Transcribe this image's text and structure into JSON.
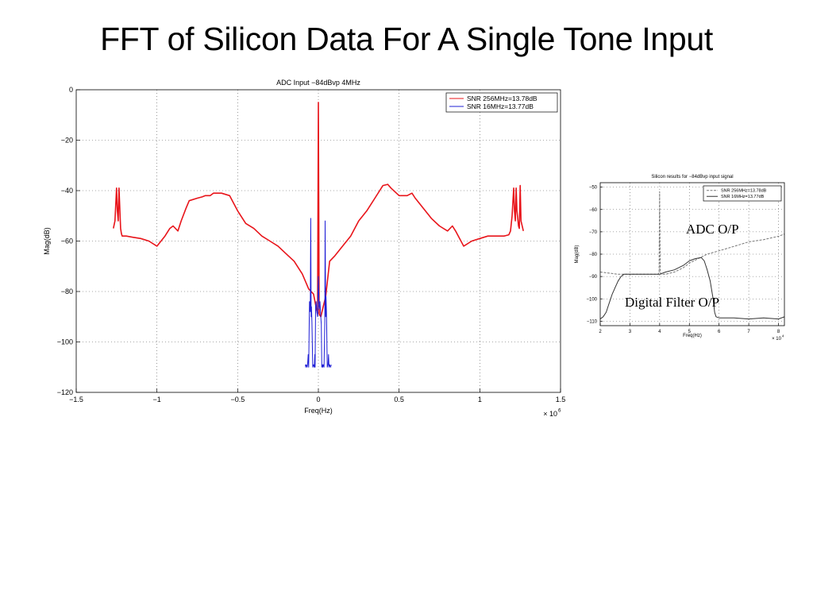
{
  "slide": {
    "title": "FFT of Silicon Data For A Single Tone Input"
  },
  "annotations": {
    "adc_op": "ADC O/P",
    "digital_filter_op": "Digital Filter O/P"
  },
  "chart_data": [
    {
      "type": "line",
      "title": "ADC Input −84dBvp 4MHz",
      "xlabel": "Freq(Hz)",
      "ylabel": "Mag(dB)",
      "x_multiplier": "× 10",
      "x_exponent": "6",
      "xlim": [
        -1.5,
        1.5
      ],
      "ylim": [
        -120,
        0
      ],
      "xticks": [
        {
          "v": -1.5,
          "label": "−1.5"
        },
        {
          "v": -1,
          "label": "−1"
        },
        {
          "v": -0.5,
          "label": "−0.5"
        },
        {
          "v": 0,
          "label": "0"
        },
        {
          "v": 0.5,
          "label": "0.5"
        },
        {
          "v": 1,
          "label": "1"
        },
        {
          "v": 1.5,
          "label": "1.5"
        }
      ],
      "yticks": [
        {
          "v": 0,
          "label": "0"
        },
        {
          "v": -20,
          "label": "−20"
        },
        {
          "v": -40,
          "label": "−40"
        },
        {
          "v": -60,
          "label": "−60"
        },
        {
          "v": -80,
          "label": "−80"
        },
        {
          "v": -100,
          "label": "−100"
        },
        {
          "v": -120,
          "label": "−120"
        }
      ],
      "grid": true,
      "legend_position": "top-right",
      "series": [
        {
          "name": "SNR 256MHz=13.78dB",
          "color": "#e8141a",
          "x": [
            -1.27,
            -1.26,
            -1.25,
            -1.245,
            -1.24,
            -1.235,
            -1.225,
            -1.22,
            -1.215,
            -1.2,
            -1.19,
            -1.15,
            -1.1,
            -1.05,
            -1.0,
            -0.95,
            -0.92,
            -0.9,
            -0.87,
            -0.85,
            -0.82,
            -0.8,
            -0.75,
            -0.72,
            -0.7,
            -0.67,
            -0.65,
            -0.6,
            -0.55,
            -0.5,
            -0.45,
            -0.4,
            -0.35,
            -0.3,
            -0.25,
            -0.2,
            -0.15,
            -0.1,
            -0.06,
            -0.03,
            -0.015,
            -0.005,
            0.0,
            0.005,
            0.015,
            0.03,
            0.045,
            0.07,
            0.1,
            0.15,
            0.2,
            0.25,
            0.3,
            0.35,
            0.4,
            0.43,
            0.45,
            0.5,
            0.55,
            0.58,
            0.6,
            0.65,
            0.7,
            0.75,
            0.8,
            0.83,
            0.85,
            0.9,
            0.95,
            1.0,
            1.05,
            1.1,
            1.15,
            1.18,
            1.19,
            1.2,
            1.21,
            1.215,
            1.22,
            1.225,
            1.23,
            1.24,
            1.245,
            1.25,
            1.255,
            1.27
          ],
          "y": [
            -55,
            -52,
            -39,
            -48,
            -52,
            -39,
            -55,
            -57,
            -58,
            -58,
            -58,
            -58.5,
            -59,
            -60,
            -62,
            -58,
            -55,
            -54,
            -56,
            -52,
            -47,
            -44,
            -43,
            -42.5,
            -42,
            -42,
            -41,
            -41,
            -42,
            -48,
            -53,
            -55,
            -58,
            -60,
            -62,
            -65,
            -68,
            -73,
            -79,
            -81,
            -86,
            -89,
            -5,
            -89,
            -90,
            -86,
            -82,
            -68,
            -66,
            -62,
            -58,
            -52,
            -48,
            -43,
            -38,
            -37.5,
            -39,
            -42,
            -42,
            -41,
            -43,
            -47,
            -51,
            -54,
            -56,
            -54,
            -56,
            -62,
            -60,
            -59,
            -58,
            -58,
            -58,
            -57.5,
            -56,
            -50,
            -39,
            -48,
            -52,
            -39,
            -48,
            -54,
            -55,
            -38,
            -52,
            -56
          ]
        },
        {
          "name": "SNR 16MHz=13.77dB",
          "color": "#1f1fd6",
          "x": [
            -0.08,
            -0.078,
            -0.075,
            -0.07,
            -0.067,
            -0.063,
            -0.06,
            -0.055,
            -0.05,
            -0.047,
            -0.045,
            -0.043,
            -0.04,
            -0.035,
            -0.03,
            -0.025,
            -0.022,
            -0.02,
            -0.017,
            -0.014,
            -0.01,
            -0.005,
            0.0,
            0.005,
            0.01,
            0.014,
            0.018,
            0.021,
            0.024,
            0.027,
            0.03,
            0.035,
            0.04,
            0.042,
            0.045,
            0.047,
            0.05,
            0.055,
            0.06,
            0.063,
            0.066,
            0.07,
            0.075,
            0.08
          ],
          "y": [
            -109,
            -110,
            -109,
            -110,
            -109,
            -105,
            -110,
            -84,
            -88,
            -51,
            -90,
            -86,
            -92,
            -110,
            -109,
            -110,
            -105,
            -110,
            -86,
            -84,
            -88,
            -90,
            -74,
            -87,
            -84,
            -89,
            -93,
            -110,
            -109,
            -110,
            -109,
            -110,
            -92,
            -52,
            -90,
            -82,
            -88,
            -110,
            -109,
            -105,
            -110,
            -109,
            -110,
            -109
          ]
        }
      ]
    },
    {
      "type": "line",
      "title": "Silicon results for −84dBvp input signal",
      "xlabel": "Freq(Hz)",
      "ylabel": "Mag(dB)",
      "x_multiplier": "× 10",
      "x_exponent": "4",
      "xlim": [
        2,
        8.2
      ],
      "ylim": [
        -112,
        -48
      ],
      "xticks": [
        {
          "v": 2,
          "label": "2"
        },
        {
          "v": 3,
          "label": "3"
        },
        {
          "v": 4,
          "label": "4"
        },
        {
          "v": 5,
          "label": "5"
        },
        {
          "v": 6,
          "label": "6"
        },
        {
          "v": 7,
          "label": "7"
        },
        {
          "v": 8,
          "label": "8"
        }
      ],
      "yticks": [
        {
          "v": -50,
          "label": "−50"
        },
        {
          "v": -60,
          "label": "−60"
        },
        {
          "v": -70,
          "label": "−70"
        },
        {
          "v": -80,
          "label": "−80"
        },
        {
          "v": -90,
          "label": "−90"
        },
        {
          "v": -100,
          "label": "−100"
        },
        {
          "v": -110,
          "label": "−110"
        }
      ],
      "grid": true,
      "legend_position": "top-right",
      "series": [
        {
          "name": "SNR 256MHz=13.78dB",
          "color": "#777777",
          "dash": true,
          "x": [
            2.0,
            2.3,
            2.6,
            3.0,
            3.3,
            3.6,
            3.9,
            3.95,
            3.98,
            4.0,
            4.02,
            4.05,
            4.2,
            4.5,
            4.8,
            5.0,
            5.3,
            5.6,
            6.0,
            6.5,
            7.0,
            7.5,
            8.0,
            8.2
          ],
          "y": [
            -88,
            -88.5,
            -89,
            -89,
            -89,
            -89,
            -89,
            -89,
            -88,
            -52,
            -88,
            -89,
            -89,
            -88,
            -86,
            -84,
            -82,
            -80,
            -78.5,
            -76.5,
            -74.5,
            -73.5,
            -72,
            -71
          ]
        },
        {
          "name": "SNR 16MHz=13.77dB",
          "color": "#333333",
          "dash": false,
          "x": [
            2.0,
            2.1,
            2.2,
            2.3,
            2.4,
            2.5,
            2.6,
            2.7,
            2.8,
            3.0,
            3.5,
            3.9,
            4.0,
            4.2,
            4.5,
            4.8,
            5.0,
            5.2,
            5.4,
            5.5,
            5.6,
            5.7,
            5.8,
            5.85,
            5.9,
            6.0,
            6.5,
            7.0,
            7.5,
            8.0,
            8.2
          ],
          "y": [
            -109,
            -108,
            -106,
            -102,
            -98,
            -95,
            -92,
            -90,
            -89,
            -89,
            -89,
            -89,
            -89,
            -88,
            -87,
            -85,
            -83,
            -82,
            -81.5,
            -83,
            -87,
            -92,
            -100,
            -106,
            -108,
            -108.5,
            -108.5,
            -109,
            -108.5,
            -109,
            -108
          ]
        }
      ]
    }
  ]
}
